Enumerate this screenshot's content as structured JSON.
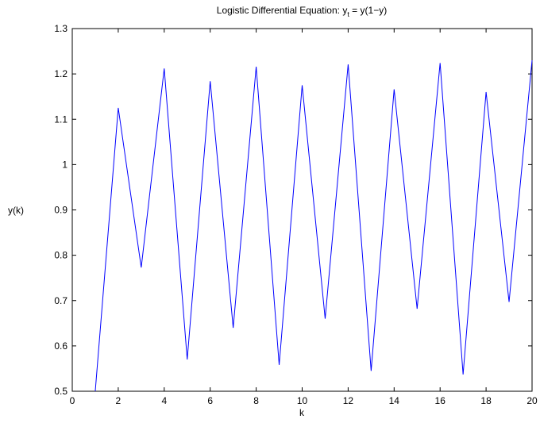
{
  "chart_data": {
    "type": "line",
    "title": "Logistic Differential Equation: ",
    "title_math": {
      "lhs": "y",
      "sub": "t",
      "rhs": " = y(1−y)"
    },
    "xlabel": "k",
    "ylabel": "y(k)",
    "xlim": [
      0,
      20
    ],
    "ylim": [
      0.5,
      1.3
    ],
    "x_ticks": [
      0,
      2,
      4,
      6,
      8,
      10,
      12,
      14,
      16,
      18,
      20
    ],
    "x_tick_labels": [
      "0",
      "2",
      "4",
      "6",
      "8",
      "10",
      "12",
      "14",
      "16",
      "18",
      "20"
    ],
    "y_ticks": [
      0.5,
      0.6,
      0.7,
      0.8,
      0.9,
      1.0,
      1.1,
      1.2,
      1.3
    ],
    "y_tick_labels": [
      "0.5",
      "0.6",
      "0.7",
      "0.8",
      "0.9",
      "1",
      "1.1",
      "1.2",
      "1.3"
    ],
    "grid": false,
    "line_color": "#0000ff",
    "series": [
      {
        "x": [
          1,
          2,
          3,
          4,
          5,
          6,
          7,
          8,
          9,
          10,
          11,
          12,
          13,
          14,
          15,
          16,
          17,
          18,
          19,
          20
        ],
        "values": [
          0.5,
          1.125,
          0.773,
          1.212,
          0.57,
          1.184,
          0.64,
          1.216,
          0.558,
          1.175,
          0.66,
          1.221,
          0.545,
          1.166,
          0.682,
          1.224,
          0.537,
          1.16,
          0.697,
          1.23
        ]
      }
    ]
  }
}
